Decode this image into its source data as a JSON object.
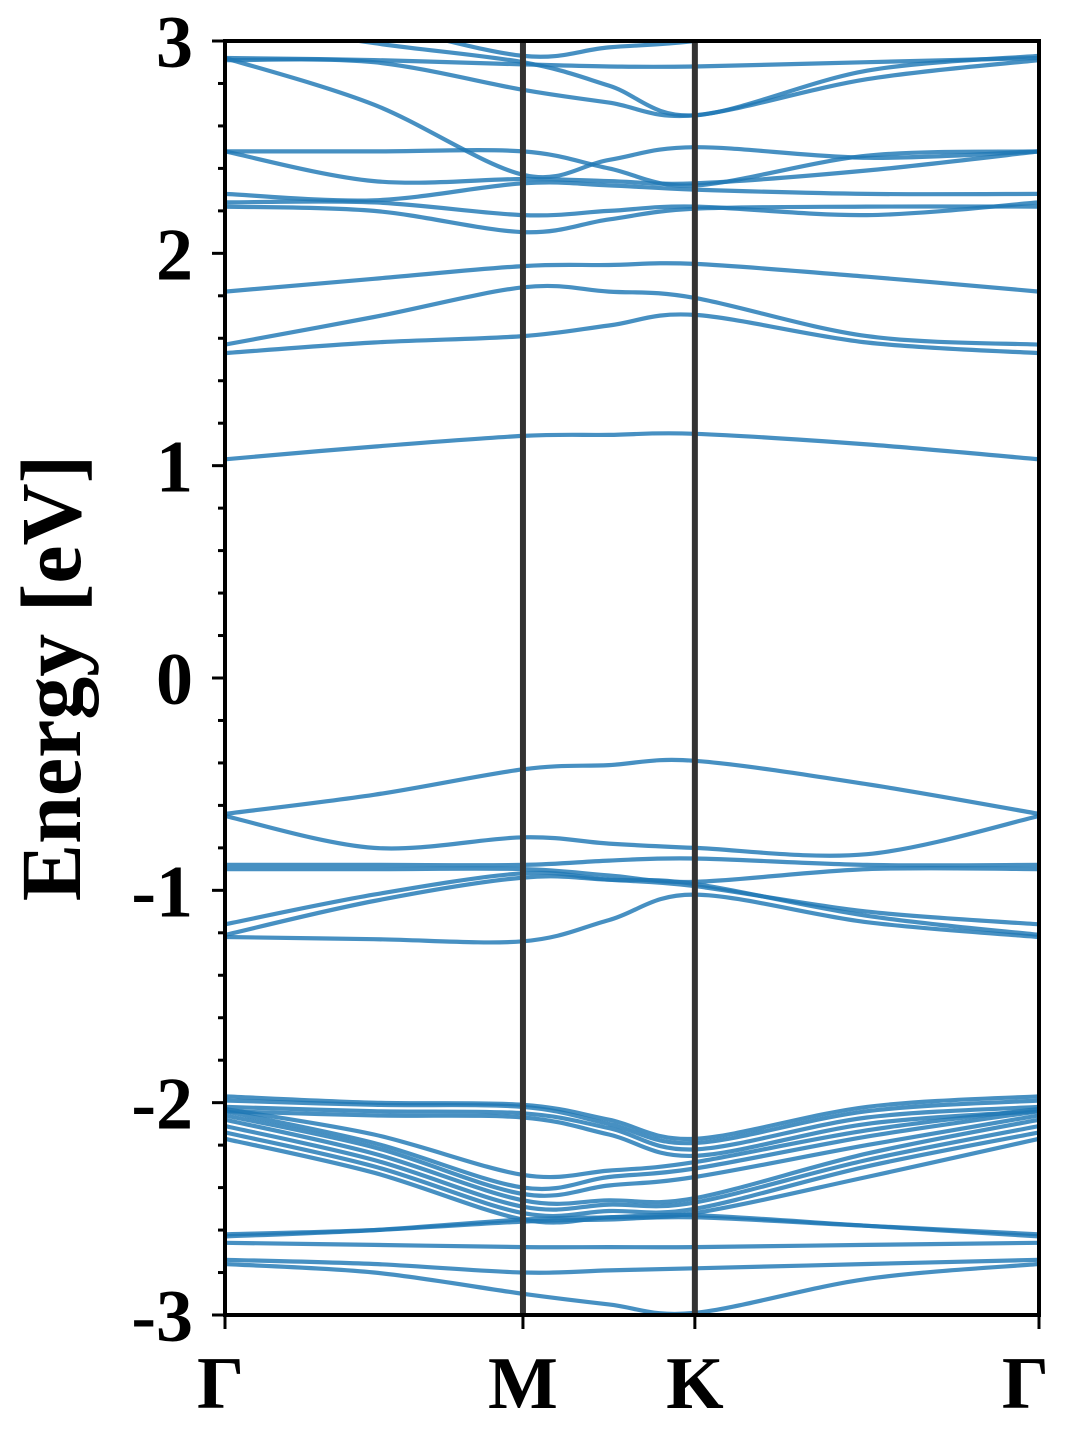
{
  "chart_data": {
    "type": "line",
    "title": "",
    "xlabel": "",
    "ylabel": "Energy [eV]",
    "ylim": [
      -3,
      3
    ],
    "grid": false,
    "yticks": [
      {
        "value": 3,
        "label": "3"
      },
      {
        "value": 2,
        "label": "2"
      },
      {
        "value": 1,
        "label": "1"
      },
      {
        "value": 0,
        "label": "0"
      },
      {
        "value": -1,
        "label": "-1"
      },
      {
        "value": -2,
        "label": "-2"
      },
      {
        "value": -3,
        "label": "-3"
      }
    ],
    "kpoints": [
      {
        "label": "Γ",
        "position": 0
      },
      {
        "label": "M",
        "position": 1
      },
      {
        "label": "K",
        "position": 1.577
      },
      {
        "label": "Γ",
        "position": 2.732
      }
    ],
    "x": [
      0,
      0.5,
      1,
      1.2885,
      1.577,
      2.1545,
      2.732
    ],
    "colors": {
      "band": "#1f77b4",
      "divider": "#333333",
      "axis": "#000000"
    },
    "series": [
      {
        "values": [
          -2.76,
          -2.8,
          -2.9,
          -2.95,
          -2.99,
          -2.83,
          -2.76
        ]
      },
      {
        "values": [
          -2.74,
          -2.76,
          -2.8,
          -2.79,
          -2.78,
          -2.76,
          -2.74
        ]
      },
      {
        "values": [
          -2.66,
          -2.67,
          -2.68,
          -2.68,
          -2.68,
          -2.67,
          -2.66
        ]
      },
      {
        "values": [
          -2.62,
          -2.6,
          -2.56,
          -2.55,
          -2.54,
          -2.58,
          -2.62
        ]
      },
      {
        "values": [
          -2.63,
          -2.6,
          -2.55,
          -2.54,
          -2.53,
          -2.58,
          -2.63
        ]
      },
      {
        "values": [
          -2.17,
          -2.33,
          -2.55,
          -2.54,
          -2.52,
          -2.35,
          -2.17
        ]
      },
      {
        "values": [
          -2.14,
          -2.3,
          -2.52,
          -2.51,
          -2.5,
          -2.3,
          -2.14
        ]
      },
      {
        "values": [
          -2.11,
          -2.27,
          -2.49,
          -2.48,
          -2.47,
          -2.27,
          -2.11
        ]
      },
      {
        "values": [
          -2.08,
          -2.24,
          -2.46,
          -2.46,
          -2.45,
          -2.24,
          -2.08
        ]
      },
      {
        "values": [
          -2.06,
          -2.21,
          -2.43,
          -2.39,
          -2.35,
          -2.2,
          -2.06
        ]
      },
      {
        "values": [
          -2.04,
          -2.19,
          -2.4,
          -2.35,
          -2.31,
          -2.16,
          -2.04
        ]
      },
      {
        "values": [
          -2.03,
          -2.15,
          -2.34,
          -2.32,
          -2.28,
          -2.13,
          -2.03
        ]
      },
      {
        "values": [
          -2.04,
          -2.06,
          -2.07,
          -2.15,
          -2.25,
          -2.1,
          -2.04
        ]
      },
      {
        "values": [
          -2.02,
          -2.04,
          -2.05,
          -2.12,
          -2.22,
          -2.07,
          -2.02
        ]
      },
      {
        "values": [
          -1.99,
          -2.01,
          -2.02,
          -2.1,
          -2.19,
          -2.04,
          -1.99
        ]
      },
      {
        "values": [
          -1.97,
          -2.0,
          -2.01,
          -2.08,
          -2.17,
          -2.02,
          -1.97
        ]
      },
      {
        "values": [
          -1.22,
          -1.23,
          -1.24,
          -1.14,
          -1.02,
          -1.15,
          -1.22
        ]
      },
      {
        "values": [
          -1.21,
          -1.05,
          -0.94,
          -0.95,
          -0.97,
          -1.12,
          -1.21
        ]
      },
      {
        "values": [
          -1.16,
          -1.02,
          -0.92,
          -0.95,
          -0.98,
          -1.1,
          -1.16
        ]
      },
      {
        "values": [
          -0.9,
          -0.9,
          -0.9,
          -0.93,
          -0.96,
          -0.9,
          -0.9
        ]
      },
      {
        "values": [
          -0.88,
          -0.88,
          -0.88,
          -0.86,
          -0.85,
          -0.88,
          -0.88
        ]
      },
      {
        "values": [
          -0.65,
          -0.8,
          -0.75,
          -0.78,
          -0.8,
          -0.83,
          -0.65
        ]
      },
      {
        "values": [
          -0.64,
          -0.55,
          -0.43,
          -0.41,
          -0.39,
          -0.5,
          -0.64
        ]
      },
      {
        "values": [
          1.03,
          1.09,
          1.14,
          1.145,
          1.15,
          1.1,
          1.03
        ]
      },
      {
        "values": [
          1.53,
          1.58,
          1.61,
          1.66,
          1.71,
          1.58,
          1.53
        ]
      },
      {
        "values": [
          1.57,
          1.7,
          1.84,
          1.82,
          1.79,
          1.61,
          1.57
        ]
      },
      {
        "values": [
          1.82,
          1.88,
          1.94,
          1.945,
          1.95,
          1.89,
          1.82
        ]
      },
      {
        "values": [
          2.22,
          2.2,
          2.1,
          2.16,
          2.21,
          2.22,
          2.22
        ]
      },
      {
        "values": [
          2.24,
          2.24,
          2.18,
          2.2,
          2.22,
          2.18,
          2.24
        ]
      },
      {
        "values": [
          2.28,
          2.25,
          2.33,
          2.32,
          2.3,
          2.28,
          2.28
        ]
      },
      {
        "values": [
          2.48,
          2.34,
          2.35,
          2.34,
          2.33,
          2.39,
          2.48
        ]
      },
      {
        "values": [
          2.48,
          2.48,
          2.48,
          2.4,
          2.32,
          2.46,
          2.48
        ]
      },
      {
        "values": [
          2.92,
          2.7,
          2.37,
          2.44,
          2.5,
          2.45,
          2.48
        ]
      },
      {
        "values": [
          2.91,
          2.9,
          2.77,
          2.71,
          2.65,
          2.82,
          2.91
        ]
      },
      {
        "values": [
          2.92,
          2.91,
          2.89,
          2.88,
          2.88,
          2.9,
          2.92
        ]
      },
      {
        "values": [
          3.1,
          2.99,
          2.9,
          2.79,
          2.65,
          2.86,
          2.93
        ]
      },
      {
        "values": [
          3.2,
          3.08,
          2.93,
          2.97,
          3.0,
          3.1,
          3.2
        ]
      }
    ]
  }
}
